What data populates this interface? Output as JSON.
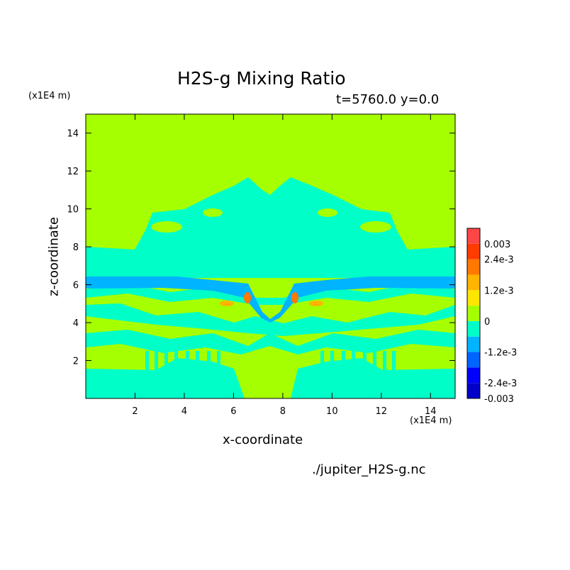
{
  "title": "H2S-g Mixing Ratio",
  "subtitle": "t=5760.0 y=0.0",
  "source_file": "./jupiter_H2S-g.nc",
  "colors": {
    "background_level": "#a6ff00",
    "negative_small": "#00ffc8",
    "negative_medium": "#00b4ff",
    "positive_small": "#ffb400",
    "positive_medium": "#ff7800"
  },
  "chart_data": {
    "type": "heatmap",
    "xlabel": "x-coordinate",
    "ylabel": "z-coordinate",
    "x_unit": "(x1E4 m)",
    "z_unit": "(x1E4 m)",
    "xlim": [
      0,
      15
    ],
    "ylim": [
      0,
      15
    ],
    "x_ticks": [
      2,
      4,
      6,
      8,
      10,
      12,
      14
    ],
    "y_ticks": [
      2,
      4,
      6,
      8,
      10,
      12,
      14
    ],
    "colorbar": {
      "levels": [
        {
          "from": -0.003,
          "to": -0.0024,
          "color": "#0000c8"
        },
        {
          "from": -0.0024,
          "to": -0.0018,
          "color": "#0000ff"
        },
        {
          "from": -0.0018,
          "to": -0.0012,
          "color": "#0064ff"
        },
        {
          "from": -0.0012,
          "to": -0.0006,
          "color": "#00b4ff"
        },
        {
          "from": -0.0006,
          "to": 0,
          "color": "#00ffc8"
        },
        {
          "from": 0,
          "to": 0.0006,
          "color": "#a6ff00"
        },
        {
          "from": 0.0006,
          "to": 0.0012,
          "color": "#ffe600"
        },
        {
          "from": 0.0012,
          "to": 0.0018,
          "color": "#ffb400"
        },
        {
          "from": 0.0018,
          "to": 0.0024,
          "color": "#ff7800"
        },
        {
          "from": 0.0024,
          "to": 0.003,
          "color": "#ff3c00"
        },
        {
          "from": 0.003,
          "to": 0.0036,
          "color": "#ff4646"
        }
      ],
      "tick_labels": [
        "0.003",
        "2.4e-3",
        "1.2e-3",
        "0",
        "-1.2e-3",
        "-2.4e-3",
        "-0.003"
      ],
      "tick_values": [
        0.003,
        0.0024,
        0.0012,
        0,
        -0.0012,
        -0.0024,
        -0.003
      ]
    }
  }
}
